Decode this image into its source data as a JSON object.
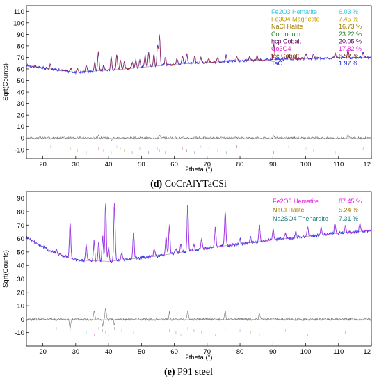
{
  "panels": [
    {
      "caption_letter": "(d)",
      "caption_text": " CoCrAlYTaCSi",
      "chart_data": {
        "type": "line",
        "xlabel": "2theta (°)",
        "ylabel": "Sqrt(Counts)",
        "xlim": [
          15,
          120
        ],
        "ylim": [
          -18,
          115
        ],
        "x_ticks": [
          "20",
          "30",
          "40",
          "50",
          "60",
          "70",
          "80",
          "90",
          "100",
          "110",
          "12"
        ],
        "y_ticks": [
          "110",
          "100",
          "90",
          "80",
          "70",
          "60",
          "50",
          "40",
          "30",
          "20",
          "10",
          "0",
          "-10"
        ],
        "legend": [
          {
            "name": "Fe2O3 Hematite",
            "value": "6.03 %",
            "color": "#40c8e0"
          },
          {
            "name": "Fe3O4 Magnetite",
            "value": "7.45 %",
            "color": "#c8a000"
          },
          {
            "name": "NaCl Halite",
            "value": "16.73 %",
            "color": "#a07800"
          },
          {
            "name": "Corundum",
            "value": "23.22 %",
            "color": "#208020"
          },
          {
            "name": "hcp Cobalt",
            "value": "20.05 %",
            "color": "#600060"
          },
          {
            "name": "Co3O4",
            "value": "17.82 %",
            "color": "#e020e0"
          },
          {
            "name": "fcc Cobalt",
            "value": "6.52 %",
            "color": "#703000"
          },
          {
            "name": "TaC",
            "value": "1.97 %",
            "color": "#2020c0"
          }
        ],
        "series": [
          {
            "role": "observed",
            "color": "#3030e0",
            "background": [
              [
                15,
                63
              ],
              [
                30,
                57
              ],
              [
                45,
                60
              ],
              [
                60,
                64
              ],
              [
                80,
                67
              ],
              [
                100,
                69
              ],
              [
                120,
                70
              ]
            ],
            "peaks": [
              [
                22.3,
                4
              ],
              [
                28.5,
                3
              ],
              [
                30.5,
                4
              ],
              [
                33.2,
                6
              ],
              [
                35.8,
                8
              ],
              [
                36.9,
                17
              ],
              [
                38.5,
                4
              ],
              [
                40.8,
                12
              ],
              [
                42.5,
                13
              ],
              [
                43.6,
                8
              ],
              [
                44.8,
                6
              ],
              [
                47.2,
                5
              ],
              [
                48.3,
                7
              ],
              [
                49.5,
                6
              ],
              [
                51.1,
                10
              ],
              [
                52.2,
                12
              ],
              [
                53.8,
                11
              ],
              [
                54.9,
                18
              ],
              [
                55.5,
                27
              ],
              [
                57.3,
                7
              ],
              [
                60.8,
                5
              ],
              [
                62.5,
                7
              ],
              [
                63.8,
                9
              ],
              [
                66.2,
                6
              ],
              [
                68.1,
                5
              ],
              [
                70.5,
                4
              ],
              [
                73.2,
                4
              ],
              [
                75.8,
                5
              ],
              [
                79.0,
                4
              ],
              [
                83.0,
                3
              ],
              [
                85.2,
                4
              ],
              [
                90.3,
                14
              ],
              [
                94.8,
                4
              ],
              [
                100.1,
                4
              ],
              [
                102.4,
                4
              ],
              [
                109.0,
                4
              ],
              [
                112.9,
                8
              ],
              [
                117.5,
                4
              ]
            ]
          },
          {
            "role": "difference",
            "color": "#707070",
            "peaks": [
              [
                36.9,
                3
              ],
              [
                40.8,
                -2
              ],
              [
                55.5,
                3
              ],
              [
                90.3,
                2
              ],
              [
                112.9,
                2
              ]
            ]
          }
        ]
      }
    },
    {
      "caption_letter": "(e)",
      "caption_text": " P91 steel",
      "chart_data": {
        "type": "line",
        "xlabel": "2theta (°)",
        "ylabel": "Sqrt(Counts)",
        "xlim": [
          15,
          120
        ],
        "ylim": [
          -20,
          95
        ],
        "x_ticks": [
          "20",
          "30",
          "40",
          "50",
          "60",
          "70",
          "80",
          "90",
          "100",
          "110",
          "12"
        ],
        "y_ticks": [
          "90",
          "80",
          "70",
          "60",
          "50",
          "40",
          "30",
          "20",
          "10",
          "0",
          "-10"
        ],
        "legend": [
          {
            "name": "Fe2O3 Hematite",
            "value": "87.45 %",
            "color": "#e020e0"
          },
          {
            "name": "NaCl Halite",
            "value": "5.24 %",
            "color": "#a07800"
          },
          {
            "name": "Na2SO4 Thenardite",
            "value": "7.31 %",
            "color": "#208080"
          }
        ],
        "series": [
          {
            "role": "observed",
            "color": "#3030e0",
            "background": [
              [
                15,
                61
              ],
              [
                22,
                51
              ],
              [
                30,
                44
              ],
              [
                40,
                43
              ],
              [
                55,
                47
              ],
              [
                70,
                53
              ],
              [
                90,
                59
              ],
              [
                110,
                64
              ],
              [
                120,
                66
              ]
            ],
            "peaks": [
              [
                24.1,
                3
              ],
              [
                28.3,
                27
              ],
              [
                33.2,
                12
              ],
              [
                35.6,
                15
              ],
              [
                37.0,
                14
              ],
              [
                38.2,
                19
              ],
              [
                39.1,
                45
              ],
              [
                40.0,
                10
              ],
              [
                41.8,
                44
              ],
              [
                44.0,
                5
              ],
              [
                47.6,
                19
              ],
              [
                53.9,
                6
              ],
              [
                57.5,
                14
              ],
              [
                58.5,
                22
              ],
              [
                60.5,
                3
              ],
              [
                62.0,
                6
              ],
              [
                64.1,
                34
              ],
              [
                66.0,
                4
              ],
              [
                68.3,
                8
              ],
              [
                72.5,
                15
              ],
              [
                75.5,
                26
              ],
              [
                80.0,
                4
              ],
              [
                83.2,
                4
              ],
              [
                85.9,
                12
              ],
              [
                90.1,
                8
              ],
              [
                93.8,
                4
              ],
              [
                97.0,
                4
              ],
              [
                100.6,
                7
              ],
              [
                104.7,
                6
              ],
              [
                108.9,
                8
              ],
              [
                112.1,
                5
              ],
              [
                116.5,
                6
              ]
            ]
          },
          {
            "role": "difference",
            "color": "#707070",
            "peaks": [
              [
                28.3,
                -8
              ],
              [
                35.6,
                7
              ],
              [
                38.2,
                -5
              ],
              [
                39.1,
                8
              ],
              [
                41.8,
                -4
              ],
              [
                58.5,
                5
              ],
              [
                64.1,
                7
              ],
              [
                75.5,
                6
              ],
              [
                85.9,
                4
              ]
            ]
          }
        ]
      }
    }
  ]
}
